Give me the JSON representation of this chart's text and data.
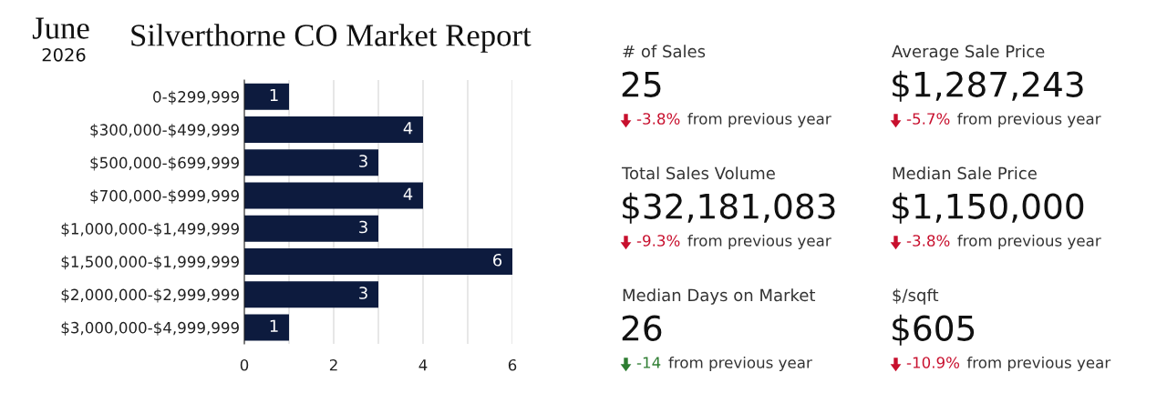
{
  "chart_data": [
    {
      "type": "bar",
      "orientation": "horizontal",
      "title": "Silverthorne CO Market Report",
      "annotations": [
        "June",
        "2026"
      ],
      "categories": [
        "0-$299,999",
        "$300,000-$499,999",
        "$500,000-$699,999",
        "$700,000-$999,999",
        "$1,000,000-$1,499,999",
        "$1,500,000-$1,999,999",
        "$2,000,000-$2,999,999",
        "$3,000,000-$4,999,999"
      ],
      "values": [
        1,
        4,
        3,
        4,
        3,
        6,
        3,
        1
      ],
      "color": "#0d1b3e",
      "xlim": [
        0,
        6
      ],
      "xticks": [
        0,
        {
          "value": 1,
          "label": null
        },
        2,
        {
          "value": 3,
          "label": null
        },
        4,
        {
          "value": 5,
          "label": null
        },
        6
      ],
      "grid": "x",
      "data_labels": true
    },
    {
      "type": "other",
      "annotations": [
        "# of Sales",
        "25",
        "-3.8%",
        "from previous year",
        "Average Sale Price",
        "$1,287,243",
        "-5.7%",
        "from previous year",
        "Total Sales Volume",
        "$32,181,083",
        "-9.3%",
        "from previous year",
        "Median Sale Price",
        "$1,150,000",
        "-3.8%",
        "from previous year",
        "Median Days on Market",
        "26",
        "-14",
        "from previous year",
        "$/sqft",
        "$605",
        "-10.9%",
        "from previous year"
      ],
      "colors": [
        "#c8102e",
        "#c8102e",
        "#c8102e",
        "#c8102e",
        "#2e7d32",
        "#c8102e"
      ]
    }
  ]
}
